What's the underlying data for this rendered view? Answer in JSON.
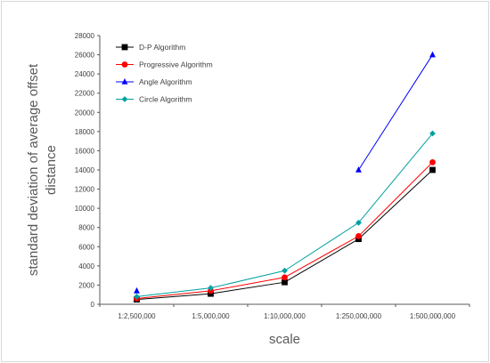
{
  "chart_data": {
    "type": "line",
    "categories": [
      "1:2,500,000",
      "1:5,000,000",
      "1:10,000,000",
      "1:250,000,000",
      "1:500,000,000"
    ],
    "xlabel": "scale",
    "ylabel": "standard deviation of average offset distance",
    "ylim": [
      0,
      28000
    ],
    "yticks": [
      0,
      2000,
      4000,
      6000,
      8000,
      10000,
      12000,
      14000,
      16000,
      18000,
      20000,
      22000,
      24000,
      26000,
      28000
    ],
    "grid": false,
    "legend_position": "top-left",
    "series": [
      {
        "name": "D-P Algorithm",
        "color": "#000000",
        "marker": "square",
        "values": [
          500,
          1100,
          2300,
          6800,
          14000
        ]
      },
      {
        "name": "Progressive Algorithm",
        "color": "#ff0000",
        "marker": "circle",
        "values": [
          600,
          1400,
          2800,
          7100,
          14800
        ]
      },
      {
        "name": "Angle Algorithm",
        "color": "#0000ff",
        "marker": "triangle",
        "values": [
          1400,
          null,
          null,
          14000,
          26000
        ]
      },
      {
        "name": "Circle Algorithm",
        "color": "#00a0a0",
        "marker": "diamond",
        "values": [
          800,
          1700,
          3500,
          8500,
          17800
        ]
      }
    ]
  }
}
